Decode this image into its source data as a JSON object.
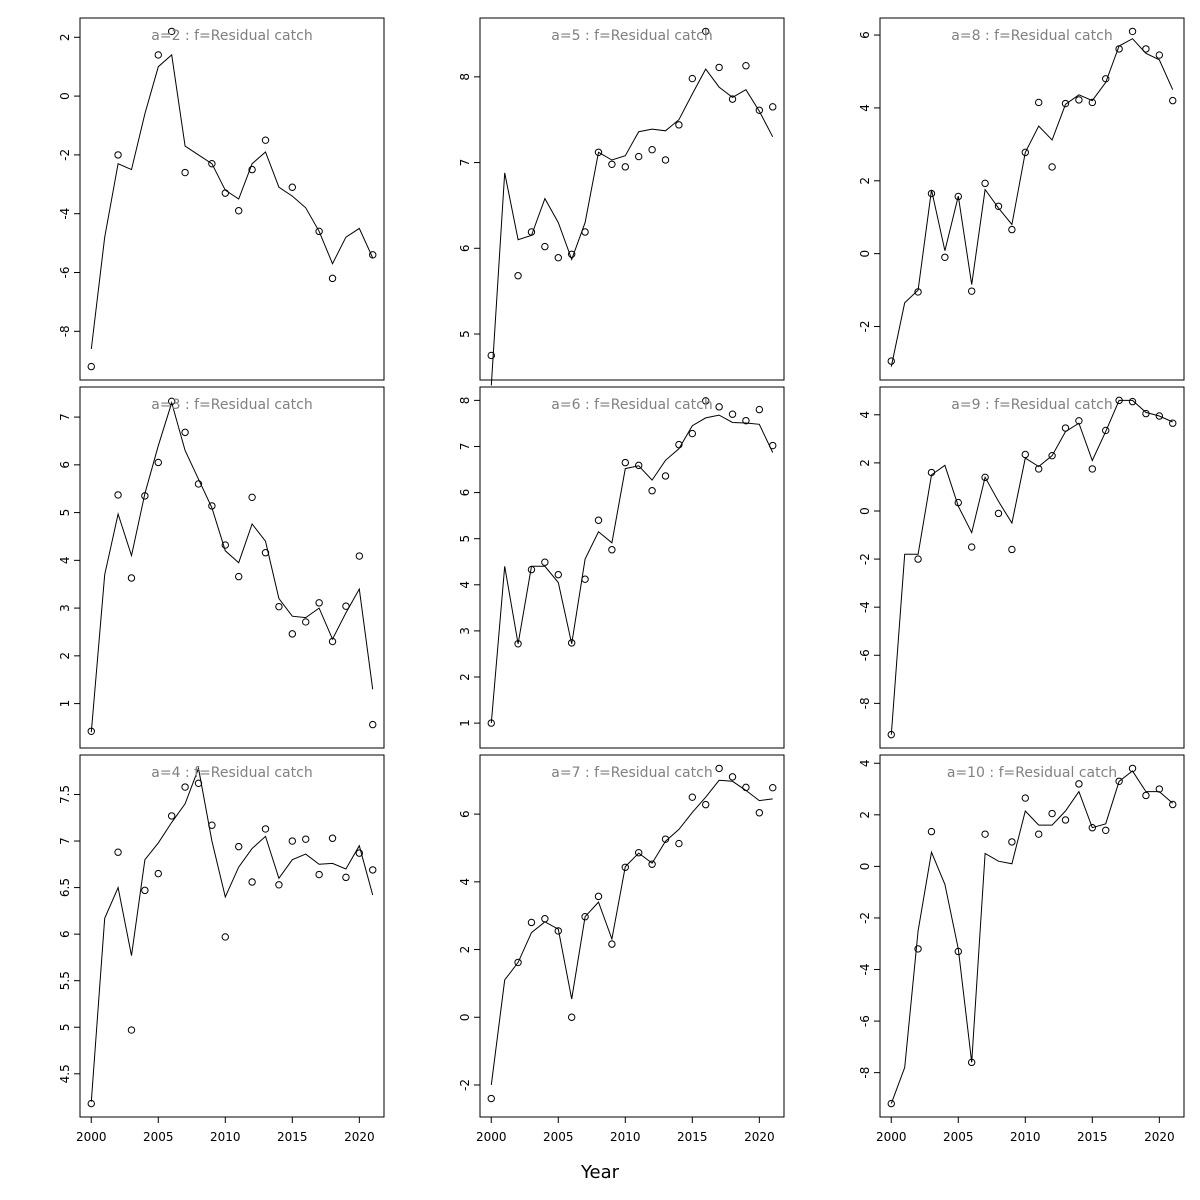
{
  "xlabel": "Year",
  "chart_data": [
    {
      "type": "line",
      "title": "a=2  :  f=Residual catch",
      "x": [
        2000,
        2001,
        2002,
        2003,
        2004,
        2005,
        2006,
        2007,
        2008,
        2009,
        2010,
        2011,
        2012,
        2013,
        2014,
        2015,
        2016,
        2017,
        2018,
        2019,
        2020,
        2021
      ],
      "fit": [
        -8.6,
        -4.8,
        -2.3,
        -2.5,
        -0.6,
        1.0,
        1.4,
        -1.7,
        -2.0,
        -2.3,
        -3.2,
        -3.5,
        -2.3,
        -1.9,
        -3.1,
        -3.4,
        -3.8,
        -4.6,
        -5.7,
        -4.8,
        -4.5,
        -5.5
      ],
      "points": [
        [
          2000,
          -9.2
        ],
        [
          2002,
          -2.0
        ],
        [
          2005,
          1.4
        ],
        [
          2006,
          2.2
        ],
        [
          2007,
          -2.6
        ],
        [
          2009,
          -2.3
        ],
        [
          2010,
          -3.3
        ],
        [
          2011,
          -3.9
        ],
        [
          2012,
          -2.5
        ],
        [
          2013,
          -1.5
        ],
        [
          2015,
          -3.1
        ],
        [
          2017,
          -4.6
        ],
        [
          2018,
          -6.2
        ],
        [
          2021,
          -5.4
        ]
      ],
      "ylim": [
        -9.2,
        2.2
      ],
      "yticks": [
        -8,
        -6,
        -4,
        -2,
        0,
        2
      ]
    },
    {
      "type": "line",
      "title": "a=3  :  f=Residual catch",
      "x": [
        2000,
        2001,
        2002,
        2003,
        2004,
        2005,
        2006,
        2007,
        2008,
        2009,
        2010,
        2011,
        2012,
        2013,
        2014,
        2015,
        2016,
        2017,
        2018,
        2019,
        2020,
        2021
      ],
      "fit": [
        0.4,
        3.7,
        4.97,
        4.1,
        5.4,
        6.4,
        7.3,
        6.3,
        5.7,
        5.1,
        4.2,
        3.95,
        4.76,
        4.4,
        3.2,
        2.83,
        2.8,
        3.0,
        2.35,
        2.9,
        3.4,
        1.3
      ],
      "points": [
        [
          2000,
          0.42
        ],
        [
          2002,
          5.37
        ],
        [
          2003,
          3.63
        ],
        [
          2004,
          5.35
        ],
        [
          2005,
          6.05
        ],
        [
          2006,
          7.33
        ],
        [
          2007,
          6.68
        ],
        [
          2008,
          5.6
        ],
        [
          2009,
          5.14
        ],
        [
          2010,
          4.32
        ],
        [
          2011,
          3.66
        ],
        [
          2012,
          5.32
        ],
        [
          2013,
          4.16
        ],
        [
          2014,
          3.03
        ],
        [
          2015,
          2.46
        ],
        [
          2016,
          2.71
        ],
        [
          2017,
          3.11
        ],
        [
          2018,
          2.3
        ],
        [
          2019,
          3.04
        ],
        [
          2020,
          4.09
        ],
        [
          2021,
          0.56
        ]
      ],
      "ylim": [
        0.35,
        7.35
      ],
      "yticks": [
        1,
        2,
        3,
        4,
        5,
        6,
        7
      ]
    },
    {
      "type": "line",
      "title": "a=4  :  f=Residual catch",
      "x": [
        2000,
        2001,
        2002,
        2003,
        2004,
        2005,
        2006,
        2007,
        2008,
        2009,
        2010,
        2011,
        2012,
        2013,
        2014,
        2015,
        2016,
        2017,
        2018,
        2019,
        2020,
        2021
      ],
      "fit": [
        4.2,
        6.17,
        6.5,
        5.77,
        6.8,
        6.98,
        7.2,
        7.4,
        7.78,
        7.0,
        6.4,
        6.72,
        6.92,
        7.05,
        6.6,
        6.8,
        6.86,
        6.75,
        6.76,
        6.7,
        6.95,
        6.42
      ],
      "points": [
        [
          2000,
          4.18
        ],
        [
          2002,
          6.88
        ],
        [
          2003,
          4.97
        ],
        [
          2004,
          6.47
        ],
        [
          2005,
          6.65
        ],
        [
          2006,
          7.27
        ],
        [
          2007,
          7.58
        ],
        [
          2008,
          7.62
        ],
        [
          2009,
          7.17
        ],
        [
          2010,
          5.97
        ],
        [
          2011,
          6.94
        ],
        [
          2012,
          6.56
        ],
        [
          2013,
          7.13
        ],
        [
          2014,
          6.53
        ],
        [
          2015,
          7.0
        ],
        [
          2016,
          7.02
        ],
        [
          2017,
          6.64
        ],
        [
          2018,
          7.03
        ],
        [
          2019,
          6.61
        ],
        [
          2020,
          6.87
        ],
        [
          2021,
          6.69
        ]
      ],
      "ylim": [
        4.18,
        7.78
      ],
      "yticks": [
        4.5,
        5.0,
        5.5,
        6.0,
        6.5,
        7.0,
        7.5
      ]
    },
    {
      "type": "line",
      "title": "a=5  :  f=Residual catch",
      "x": [
        2000,
        2001,
        2002,
        2003,
        2004,
        2005,
        2006,
        2007,
        2008,
        2009,
        2010,
        2011,
        2012,
        2013,
        2014,
        2015,
        2016,
        2017,
        2018,
        2019,
        2020,
        2021
      ],
      "fit": [
        4.4,
        6.88,
        6.1,
        6.15,
        6.58,
        6.3,
        5.87,
        6.3,
        7.12,
        7.03,
        7.08,
        7.36,
        7.39,
        7.37,
        7.5,
        7.8,
        8.09,
        7.88,
        7.76,
        7.85,
        7.6,
        7.3
      ],
      "points": [
        [
          2000,
          4.75
        ],
        [
          2002,
          5.68
        ],
        [
          2003,
          6.19
        ],
        [
          2004,
          6.02
        ],
        [
          2005,
          5.89
        ],
        [
          2006,
          5.93
        ],
        [
          2007,
          6.19
        ],
        [
          2008,
          7.12
        ],
        [
          2009,
          6.98
        ],
        [
          2010,
          6.95
        ],
        [
          2011,
          7.07
        ],
        [
          2012,
          7.15
        ],
        [
          2013,
          7.03
        ],
        [
          2014,
          7.44
        ],
        [
          2015,
          7.98
        ],
        [
          2016,
          8.53
        ],
        [
          2017,
          8.11
        ],
        [
          2018,
          7.74
        ],
        [
          2019,
          8.13
        ],
        [
          2020,
          7.61
        ],
        [
          2021,
          7.65
        ]
      ],
      "ylim": [
        4.62,
        8.53
      ],
      "yticks": [
        5,
        6,
        7,
        8
      ]
    },
    {
      "type": "line",
      "title": "a=6  :  f=Residual catch",
      "x": [
        2000,
        2001,
        2002,
        2003,
        2004,
        2005,
        2006,
        2007,
        2008,
        2009,
        2010,
        2011,
        2012,
        2013,
        2014,
        2015,
        2016,
        2017,
        2018,
        2019,
        2020,
        2021
      ],
      "fit": [
        1.0,
        4.4,
        2.72,
        4.4,
        4.4,
        4.05,
        2.72,
        4.56,
        5.15,
        4.91,
        6.52,
        6.58,
        6.27,
        6.7,
        6.95,
        7.45,
        7.62,
        7.68,
        7.52,
        7.51,
        7.48,
        6.87
      ],
      "points": [
        [
          2000,
          1.0
        ],
        [
          2002,
          2.72
        ],
        [
          2003,
          4.33
        ],
        [
          2004,
          4.49
        ],
        [
          2005,
          4.22
        ],
        [
          2006,
          2.74
        ],
        [
          2007,
          4.12
        ],
        [
          2008,
          5.4
        ],
        [
          2009,
          4.76
        ],
        [
          2010,
          6.65
        ],
        [
          2011,
          6.59
        ],
        [
          2012,
          6.04
        ],
        [
          2013,
          6.36
        ],
        [
          2014,
          7.04
        ],
        [
          2015,
          7.28
        ],
        [
          2016,
          7.99
        ],
        [
          2017,
          7.86
        ],
        [
          2018,
          7.7
        ],
        [
          2019,
          7.56
        ],
        [
          2020,
          7.8
        ],
        [
          2021,
          7.02
        ]
      ],
      "ylim": [
        0.75,
        8.0
      ],
      "yticks": [
        1,
        2,
        3,
        4,
        5,
        6,
        7,
        8
      ]
    },
    {
      "type": "line",
      "title": "a=7  :  f=Residual catch",
      "x": [
        2000,
        2001,
        2002,
        2003,
        2004,
        2005,
        2006,
        2007,
        2008,
        2009,
        2010,
        2011,
        2012,
        2013,
        2014,
        2015,
        2016,
        2017,
        2018,
        2019,
        2020,
        2021
      ],
      "fit": [
        -2.0,
        1.1,
        1.62,
        2.5,
        2.82,
        2.6,
        0.54,
        2.97,
        3.4,
        2.31,
        4.45,
        4.85,
        4.55,
        5.2,
        5.55,
        6.05,
        6.5,
        7.0,
        6.97,
        6.7,
        6.4,
        6.45
      ],
      "points": [
        [
          2000,
          -2.4
        ],
        [
          2002,
          1.62
        ],
        [
          2003,
          2.8
        ],
        [
          2004,
          2.91
        ],
        [
          2005,
          2.55
        ],
        [
          2006,
          0.0
        ],
        [
          2007,
          2.97
        ],
        [
          2008,
          3.57
        ],
        [
          2009,
          2.16
        ],
        [
          2010,
          4.43
        ],
        [
          2011,
          4.86
        ],
        [
          2012,
          4.52
        ],
        [
          2013,
          5.26
        ],
        [
          2014,
          5.13
        ],
        [
          2015,
          6.5
        ],
        [
          2016,
          6.28
        ],
        [
          2017,
          7.35
        ],
        [
          2018,
          7.1
        ],
        [
          2019,
          6.79
        ],
        [
          2020,
          6.04
        ],
        [
          2021,
          6.78
        ]
      ],
      "ylim": [
        -2.55,
        7.35
      ],
      "yticks": [
        -2,
        0,
        2,
        4,
        6
      ]
    },
    {
      "type": "line",
      "title": "a=8  :  f=Residual catch",
      "x": [
        2000,
        2001,
        2002,
        2003,
        2004,
        2005,
        2006,
        2007,
        2008,
        2009,
        2010,
        2011,
        2012,
        2013,
        2014,
        2015,
        2016,
        2017,
        2018,
        2019,
        2020,
        2021
      ],
      "fit": [
        -3.1,
        -1.35,
        -1.0,
        1.75,
        0.08,
        1.58,
        -0.85,
        1.76,
        1.25,
        0.8,
        2.78,
        3.5,
        3.12,
        4.1,
        4.36,
        4.2,
        4.7,
        5.7,
        5.9,
        5.5,
        5.32,
        4.5
      ],
      "points": [
        [
          2000,
          -2.95
        ],
        [
          2002,
          -1.05
        ],
        [
          2003,
          1.65
        ],
        [
          2004,
          -0.1
        ],
        [
          2005,
          1.57
        ],
        [
          2006,
          -1.03
        ],
        [
          2007,
          1.93
        ],
        [
          2008,
          1.3
        ],
        [
          2009,
          0.66
        ],
        [
          2010,
          2.78
        ],
        [
          2011,
          4.15
        ],
        [
          2012,
          2.38
        ],
        [
          2013,
          4.12
        ],
        [
          2014,
          4.22
        ],
        [
          2015,
          4.15
        ],
        [
          2016,
          4.8
        ],
        [
          2017,
          5.62
        ],
        [
          2018,
          6.1
        ],
        [
          2019,
          5.62
        ],
        [
          2020,
          5.45
        ],
        [
          2021,
          4.2
        ]
      ],
      "ylim": [
        -3.1,
        6.1
      ],
      "yticks": [
        -2,
        0,
        2,
        4,
        6
      ]
    },
    {
      "type": "line",
      "title": "a=9  :  f=Residual catch",
      "x": [
        2000,
        2001,
        2002,
        2003,
        2004,
        2005,
        2006,
        2007,
        2008,
        2009,
        2010,
        2011,
        2012,
        2013,
        2014,
        2015,
        2016,
        2017,
        2018,
        2019,
        2020,
        2021
      ],
      "fit": [
        -9.3,
        -1.8,
        -1.8,
        1.5,
        1.9,
        0.2,
        -0.9,
        1.4,
        0.4,
        -0.5,
        2.2,
        1.85,
        2.3,
        3.3,
        3.65,
        2.1,
        3.3,
        4.6,
        4.6,
        4.1,
        3.95,
        3.7
      ],
      "points": [
        [
          2000,
          -9.3
        ],
        [
          2002,
          -2.0
        ],
        [
          2003,
          1.6
        ],
        [
          2005,
          0.35
        ],
        [
          2006,
          -1.5
        ],
        [
          2007,
          1.4
        ],
        [
          2008,
          -0.1
        ],
        [
          2009,
          -1.6
        ],
        [
          2010,
          2.35
        ],
        [
          2011,
          1.75
        ],
        [
          2012,
          2.3
        ],
        [
          2013,
          3.45
        ],
        [
          2014,
          3.75
        ],
        [
          2015,
          1.75
        ],
        [
          2016,
          3.35
        ],
        [
          2017,
          4.6
        ],
        [
          2018,
          4.55
        ],
        [
          2019,
          4.05
        ],
        [
          2020,
          3.95
        ],
        [
          2021,
          3.65
        ]
      ],
      "ylim": [
        -9.3,
        4.6
      ],
      "yticks": [
        -8,
        -6,
        -4,
        -2,
        0,
        2,
        4
      ]
    },
    {
      "type": "line",
      "title": "a=10  :  f=Residual catch",
      "x": [
        2000,
        2001,
        2002,
        2003,
        2004,
        2005,
        2006,
        2007,
        2008,
        2009,
        2010,
        2011,
        2012,
        2013,
        2014,
        2015,
        2016,
        2017,
        2018,
        2019,
        2020,
        2021
      ],
      "fit": [
        -9.2,
        -7.8,
        -2.5,
        0.55,
        -0.7,
        -3.2,
        -7.6,
        0.5,
        0.2,
        0.1,
        2.15,
        1.6,
        1.6,
        2.15,
        2.9,
        1.5,
        1.65,
        3.3,
        3.7,
        2.9,
        2.9,
        2.45
      ],
      "points": [
        [
          2000,
          -9.2
        ],
        [
          2002,
          -3.2
        ],
        [
          2003,
          1.35
        ],
        [
          2005,
          -3.3
        ],
        [
          2006,
          -7.6
        ],
        [
          2007,
          1.25
        ],
        [
          2009,
          0.95
        ],
        [
          2010,
          2.65
        ],
        [
          2011,
          1.25
        ],
        [
          2012,
          2.05
        ],
        [
          2013,
          1.8
        ],
        [
          2014,
          3.2
        ],
        [
          2015,
          1.5
        ],
        [
          2016,
          1.4
        ],
        [
          2017,
          3.3
        ],
        [
          2018,
          3.8
        ],
        [
          2019,
          2.75
        ],
        [
          2020,
          3.0
        ],
        [
          2021,
          2.4
        ]
      ],
      "ylim": [
        -9.2,
        3.8
      ],
      "yticks": [
        -8,
        -6,
        -4,
        -2,
        0,
        2,
        4
      ]
    }
  ],
  "xaxis": {
    "xlim": [
      2000,
      2021
    ],
    "xticks": [
      2000,
      2005,
      2010,
      2015,
      2020
    ]
  }
}
